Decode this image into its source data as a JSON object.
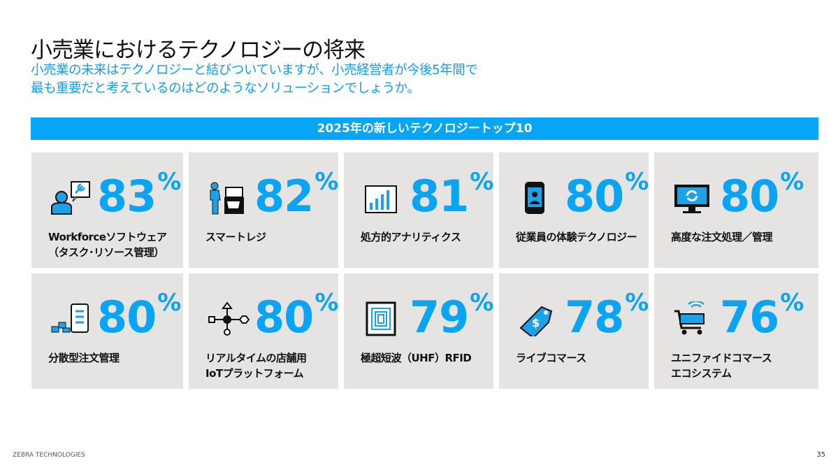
{
  "title": "小売業におけるテクノロジーの将来",
  "subtitle_line1": "小売業の未来はテクノロジーと結びついていますが、小売経営者が今後5年間で",
  "subtitle_line2": "最も重要だと考えているのはどのようなソリューションでしょうか。",
  "banner": "2025年の新しいテクノロジートップ10",
  "cards": [
    {
      "icon": "worker-support-icon",
      "value": "83",
      "unit": "%",
      "label1": "Workforceソフトウェア",
      "label2": "（タスク･リソース管理）"
    },
    {
      "icon": "smart-register-icon",
      "value": "82",
      "unit": "%",
      "label1": "スマートレジ",
      "label2": ""
    },
    {
      "icon": "bar-chart-icon",
      "value": "81",
      "unit": "%",
      "label1": "処方的アナリティクス",
      "label2": ""
    },
    {
      "icon": "employee-device-icon",
      "value": "80",
      "unit": "%",
      "label1": "従業員の体験テクノロジー",
      "label2": ""
    },
    {
      "icon": "order-refresh-icon",
      "value": "80",
      "unit": "%",
      "label1": "高度な注文処理／管理",
      "label2": ""
    },
    {
      "icon": "distributed-order-icon",
      "value": "80",
      "unit": "%",
      "label1": "分散型注文管理",
      "label2": ""
    },
    {
      "icon": "iot-network-icon",
      "value": "80",
      "unit": "%",
      "label1": "リアルタイムの店舗用",
      "label2": "IoTプラットフォーム"
    },
    {
      "icon": "rfid-chip-icon",
      "value": "79",
      "unit": "%",
      "label1": "極超短波（UHF）RFID",
      "label2": ""
    },
    {
      "icon": "price-tag-icon",
      "value": "78",
      "unit": "%",
      "label1": "ライブコマース",
      "label2": ""
    },
    {
      "icon": "connected-cart-icon",
      "value": "76",
      "unit": "%",
      "label1": "ユニファイドコマース",
      "label2": "エコシステム"
    }
  ],
  "footer": "ZEBRA TECHNOLOGIES",
  "page_number": "35",
  "colors": {
    "accent": "#07a5f5",
    "card": "#e5e4e3"
  }
}
